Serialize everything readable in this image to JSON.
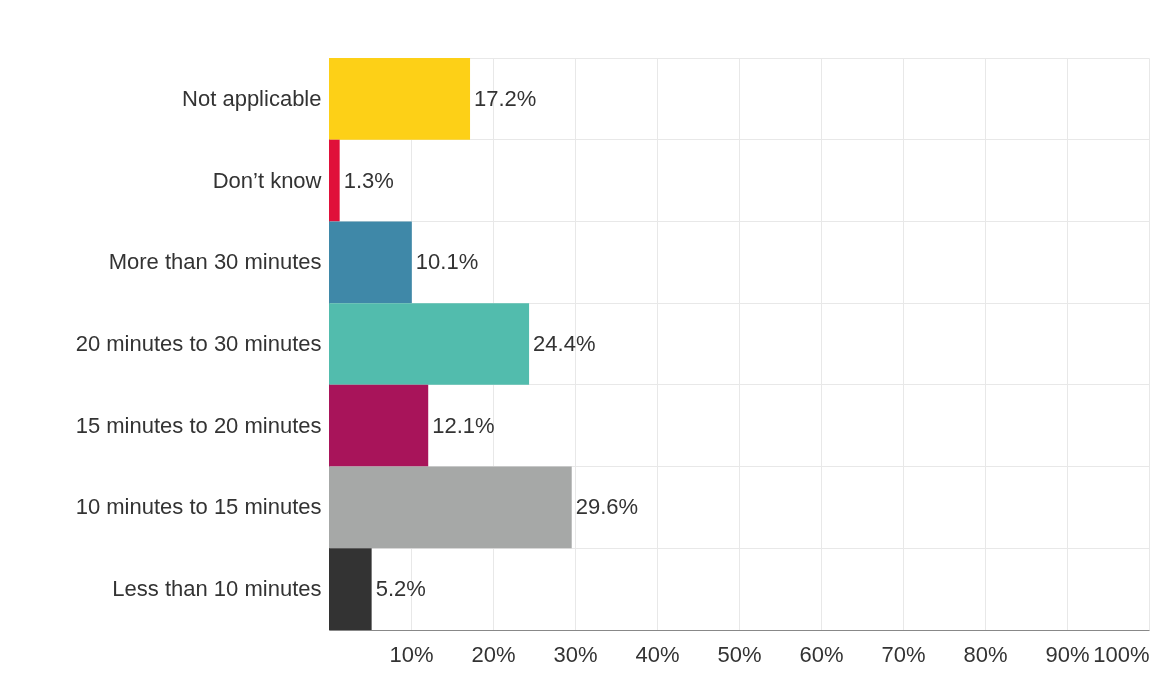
{
  "chart_data": {
    "type": "bar",
    "orientation": "horizontal",
    "categories": [
      "Not applicable",
      "Don’t know",
      "More than 30 minutes",
      "20 minutes to 30 minutes",
      "15 minutes to 20 minutes",
      "10 minutes to 15 minutes",
      "Less than 10 minutes"
    ],
    "values": [
      17.2,
      1.3,
      10.1,
      24.4,
      12.1,
      29.6,
      5.2
    ],
    "colors": [
      "#fdd017",
      "#e0103a",
      "#3f88a8",
      "#52bcad",
      "#a8145a",
      "#a6a8a7",
      "#333333"
    ],
    "value_labels": [
      "17.2%",
      "1.3%",
      "10.1%",
      "24.4%",
      "12.1%",
      "29.6%",
      "5.2%"
    ],
    "xlim": [
      0,
      100
    ],
    "xticks": [
      {
        "value": 10,
        "label": "10%"
      },
      {
        "value": 20,
        "label": "20%"
      },
      {
        "value": 30,
        "label": "30%"
      },
      {
        "value": 40,
        "label": "40%"
      },
      {
        "value": 50,
        "label": "50%"
      },
      {
        "value": 60,
        "label": "60%"
      },
      {
        "value": 70,
        "label": "70%"
      },
      {
        "value": 80,
        "label": "80%"
      },
      {
        "value": 90,
        "label": "90%"
      },
      {
        "value": 100,
        "label": "100%"
      }
    ],
    "grid": true
  }
}
